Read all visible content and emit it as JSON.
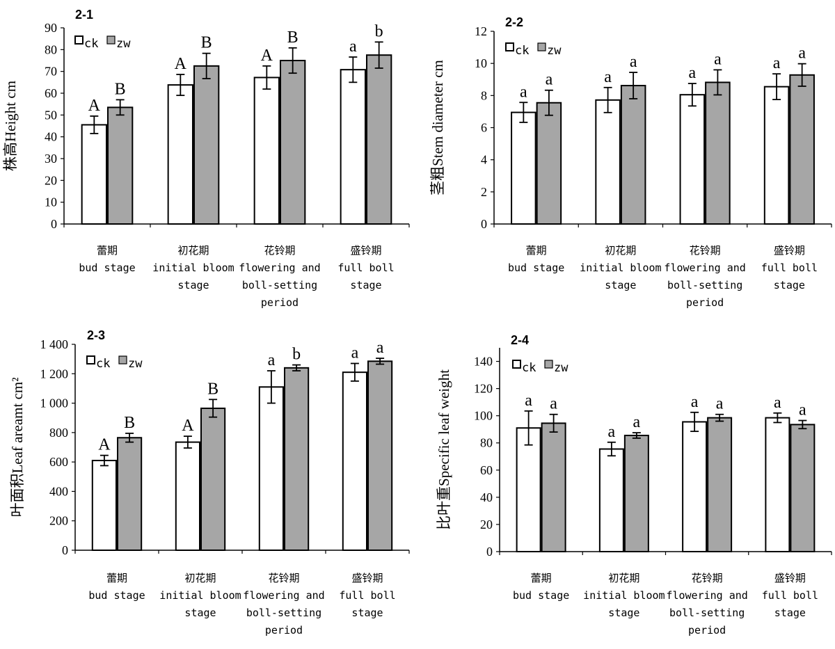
{
  "colors": {
    "ck": "#ffffff",
    "zw": "#a6a6a6",
    "stroke": "#000000"
  },
  "legend": {
    "ck": "ck",
    "zw": "zw"
  },
  "categories": [
    {
      "cn": "蕾期",
      "en": [
        "bud stage"
      ]
    },
    {
      "cn": "初花期",
      "en": [
        "initial bloom",
        "stage"
      ]
    },
    {
      "cn": "花铃期",
      "en": [
        "flowering and",
        "boll-setting",
        "period"
      ]
    },
    {
      "cn": "盛铃期",
      "en": [
        "full boll",
        "stage"
      ]
    }
  ],
  "chart_data": [
    {
      "type": "bar",
      "panel_label": "2-1",
      "ylabel": "株高Height cm",
      "ylim": [
        0,
        90
      ],
      "yticks": [
        0,
        10,
        20,
        30,
        40,
        50,
        60,
        70,
        80,
        90
      ],
      "ytick_labels": [
        "0",
        "10",
        "20",
        "30",
        "40",
        "50",
        "60",
        "70",
        "80",
        "90"
      ],
      "categories": [
        "蕾期 bud stage",
        "初花期 initial bloom stage",
        "花铃期 flowering and boll-setting period",
        "盛铃期 full boll stage"
      ],
      "series": [
        {
          "name": "ck",
          "values": [
            45.5,
            63.8,
            67.2,
            70.8
          ],
          "error": [
            4,
            4.8,
            5.3,
            5.8
          ],
          "labels": [
            "A",
            "A",
            "A",
            "a"
          ]
        },
        {
          "name": "zw",
          "values": [
            53.5,
            72.5,
            75.0,
            77.5
          ],
          "error": [
            3.5,
            5.8,
            5.8,
            6.0
          ],
          "labels": [
            "B",
            "B",
            "B",
            "b"
          ]
        }
      ]
    },
    {
      "type": "bar",
      "panel_label": "2-2",
      "ylabel": "茎粗Stem diameter cm",
      "ylim": [
        0,
        12
      ],
      "yticks": [
        0,
        2,
        4,
        6,
        8,
        10,
        12
      ],
      "ytick_labels": [
        "0",
        "2",
        "4",
        "6",
        "8",
        "10",
        "12"
      ],
      "categories": [
        "蕾期 bud stage",
        "初花期 initial bloom stage",
        "花铃期 flowering and boll-setting period",
        "盛铃期 full boll stage"
      ],
      "series": [
        {
          "name": "ck",
          "values": [
            6.95,
            7.72,
            8.05,
            8.55
          ],
          "error": [
            0.62,
            0.78,
            0.7,
            0.8
          ],
          "labels": [
            "a",
            "a",
            "a",
            "a"
          ]
        },
        {
          "name": "zw",
          "values": [
            7.55,
            8.62,
            8.82,
            9.28
          ],
          "error": [
            0.78,
            0.82,
            0.78,
            0.7
          ],
          "labels": [
            "a",
            "a",
            "a",
            "a"
          ]
        }
      ]
    },
    {
      "type": "bar",
      "panel_label": "2-3",
      "ylabel": "叶面积Leaf areamt cm²",
      "ylim": [
        0,
        1400
      ],
      "yticks": [
        0,
        200,
        400,
        600,
        800,
        1000,
        1200,
        1400
      ],
      "ytick_labels": [
        "0",
        "200",
        "400",
        "600",
        "800",
        "1 000",
        "1 200",
        "1 400"
      ],
      "categories": [
        "蕾期 bud stage",
        "初花期 initial bloom stage",
        "花铃期 flowering and boll-setting period",
        "盛铃期 full boll stage"
      ],
      "series": [
        {
          "name": "ck",
          "values": [
            610,
            735,
            1110,
            1210
          ],
          "error": [
            35,
            40,
            110,
            60
          ],
          "labels": [
            "A",
            "A",
            "a",
            "a"
          ]
        },
        {
          "name": "zw",
          "values": [
            765,
            965,
            1240,
            1285
          ],
          "error": [
            30,
            60,
            20,
            20
          ],
          "labels": [
            "B",
            "B",
            "b",
            "a"
          ]
        }
      ]
    },
    {
      "type": "bar",
      "panel_label": "2-4",
      "ylabel": "比叶重Specific leaf weight",
      "ylim": [
        0,
        150
      ],
      "yticks": [
        0,
        20,
        40,
        60,
        80,
        100,
        120,
        140
      ],
      "ytick_labels": [
        "0",
        "20",
        "40",
        "60",
        "80",
        "100",
        "120",
        "140"
      ],
      "categories": [
        "蕾期 bud stage",
        "初花期 initial bloom stage",
        "花铃期 flowering and boll-setting period",
        "盛铃期 full boll stage"
      ],
      "series": [
        {
          "name": "ck",
          "values": [
            91,
            75.5,
            95.5,
            98.5
          ],
          "error": [
            12.5,
            5,
            7,
            3.5
          ],
          "labels": [
            "a",
            "a",
            "a",
            "a"
          ]
        },
        {
          "name": "zw",
          "values": [
            94.5,
            85.5,
            98.5,
            93.5
          ],
          "error": [
            6.5,
            2,
            2.5,
            3
          ],
          "labels": [
            "a",
            "a",
            "a",
            "a"
          ]
        }
      ]
    }
  ]
}
